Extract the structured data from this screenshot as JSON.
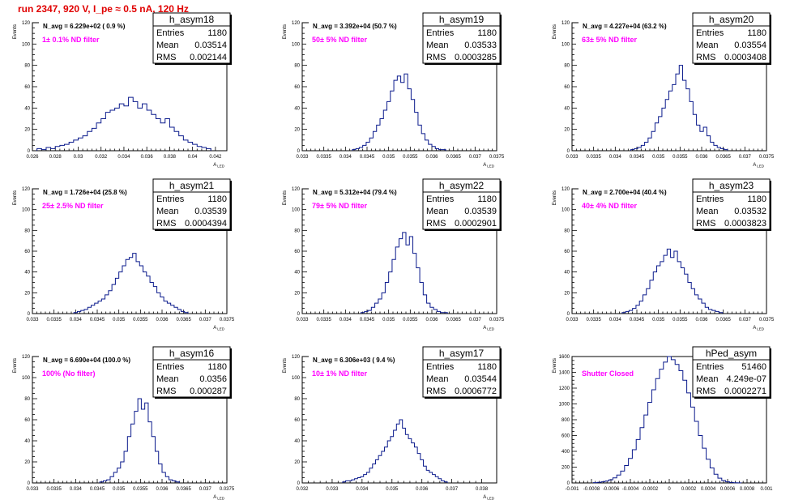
{
  "title": "run 2347,   920 V, I_pe ≈ 0.5 nA, 120 Hz",
  "chart_data": [
    {
      "type": "bar",
      "name": "h_asym18",
      "navg": "N_avg = 6.229e+02 ( 0.9 %)",
      "filter": "1± 0.1% ND filter",
      "entries": "1180",
      "mean": "0.03514",
      "rms": "0.002144",
      "xlabel": "A_LED",
      "ylabel": "Events",
      "xlim": [
        0.026,
        0.043
      ],
      "ylim": [
        0,
        120
      ],
      "xticks": [
        "0.026",
        "0.028",
        "0.03",
        "0.032",
        "0.034",
        "0.036",
        "0.038",
        "0.04",
        "0.042"
      ],
      "yticks": [
        "0",
        "20",
        "40",
        "60",
        "80",
        "100",
        "120"
      ],
      "x": [
        0.0266,
        0.027,
        0.0274,
        0.0278,
        0.0282,
        0.0286,
        0.029,
        0.0294,
        0.0298,
        0.0302,
        0.0306,
        0.031,
        0.0314,
        0.0318,
        0.0322,
        0.0326,
        0.033,
        0.0334,
        0.0338,
        0.0342,
        0.0346,
        0.035,
        0.0354,
        0.0358,
        0.0362,
        0.0366,
        0.037,
        0.0374,
        0.0378,
        0.0382,
        0.0386,
        0.039,
        0.0394,
        0.0398,
        0.0402,
        0.0406,
        0.041,
        0.0414
      ],
      "values": [
        2,
        1,
        3,
        2,
        4,
        5,
        6,
        8,
        10,
        12,
        14,
        18,
        21,
        26,
        30,
        36,
        38,
        40,
        44,
        42,
        50,
        46,
        40,
        44,
        38,
        34,
        30,
        26,
        30,
        22,
        18,
        14,
        10,
        8,
        6,
        4,
        3,
        2
      ]
    },
    {
      "type": "bar",
      "name": "h_asym19",
      "navg": "N_avg = 3.392e+04 (50.7 %)",
      "filter": "50± 5% ND filter",
      "entries": "1180",
      "mean": "0.03533",
      "rms": "0.0003285",
      "xlabel": "A_LED",
      "ylabel": "Events",
      "xlim": [
        0.033,
        0.0375
      ],
      "ylim": [
        0,
        120
      ],
      "xticks": [
        "0.033",
        "0.0335",
        "0.034",
        "0.0345",
        "0.035",
        "0.0355",
        "0.036",
        "0.0365",
        "0.037",
        "0.0375"
      ],
      "yticks": [
        "0",
        "20",
        "40",
        "60",
        "80",
        "100",
        "120"
      ],
      "x": [
        0.0342,
        0.03428,
        0.03436,
        0.03444,
        0.03452,
        0.0346,
        0.03468,
        0.03476,
        0.03484,
        0.03492,
        0.035,
        0.03508,
        0.03516,
        0.03524,
        0.03532,
        0.0354,
        0.03548,
        0.03556,
        0.03564,
        0.03572,
        0.0358,
        0.03588,
        0.03596,
        0.03604,
        0.03612,
        0.0362,
        0.03628
      ],
      "values": [
        1,
        2,
        3,
        5,
        8,
        12,
        18,
        24,
        30,
        38,
        46,
        56,
        66,
        70,
        64,
        72,
        58,
        48,
        36,
        24,
        16,
        10,
        6,
        4,
        2,
        1,
        1
      ]
    },
    {
      "type": "bar",
      "name": "h_asym20",
      "navg": "N_avg = 4.227e+04 (63.2 %)",
      "filter": "63± 5% ND filter",
      "entries": "1180",
      "mean": "0.03554",
      "rms": "0.0003408",
      "xlabel": "A_LED",
      "ylabel": "Events",
      "xlim": [
        0.033,
        0.0375
      ],
      "ylim": [
        0,
        120
      ],
      "xticks": [
        "0.033",
        "0.0335",
        "0.034",
        "0.0345",
        "0.035",
        "0.0355",
        "0.036",
        "0.0365",
        "0.037",
        "0.0375"
      ],
      "yticks": [
        "0",
        "20",
        "40",
        "60",
        "80",
        "100",
        "120"
      ],
      "x": [
        0.0344,
        0.03448,
        0.03456,
        0.03464,
        0.03472,
        0.0348,
        0.03488,
        0.03496,
        0.03504,
        0.03512,
        0.0352,
        0.03528,
        0.03536,
        0.03544,
        0.03552,
        0.0356,
        0.03568,
        0.03576,
        0.03584,
        0.03592,
        0.036,
        0.03608,
        0.03616,
        0.03624,
        0.03632,
        0.0364,
        0.03648,
        0.03656
      ],
      "values": [
        1,
        2,
        3,
        5,
        8,
        12,
        18,
        26,
        32,
        40,
        48,
        56,
        62,
        72,
        80,
        66,
        58,
        46,
        34,
        24,
        18,
        22,
        14,
        8,
        5,
        3,
        2,
        1
      ]
    },
    {
      "type": "bar",
      "name": "h_asym21",
      "navg": "N_avg = 1.726e+04 (25.8 %)",
      "filter": "25± 2.5% ND filter",
      "entries": "1180",
      "mean": "0.03539",
      "rms": "0.0004394",
      "xlabel": "A_LED",
      "ylabel": "Events",
      "xlim": [
        0.033,
        0.0375
      ],
      "ylim": [
        0,
        120
      ],
      "xticks": [
        "0.033",
        "0.0335",
        "0.034",
        "0.0345",
        "0.035",
        "0.0355",
        "0.036",
        "0.0365",
        "0.037",
        "0.0375"
      ],
      "yticks": [
        "0",
        "20",
        "40",
        "60",
        "80",
        "100",
        "120"
      ],
      "x": [
        0.034,
        0.03408,
        0.03416,
        0.03424,
        0.03432,
        0.0344,
        0.03448,
        0.03456,
        0.03464,
        0.03472,
        0.0348,
        0.03488,
        0.03496,
        0.03504,
        0.03512,
        0.0352,
        0.03528,
        0.03536,
        0.03544,
        0.03552,
        0.0356,
        0.03568,
        0.03576,
        0.03584,
        0.03592,
        0.036,
        0.03608,
        0.03616,
        0.03624,
        0.03632,
        0.0364,
        0.03648,
        0.03656
      ],
      "values": [
        1,
        2,
        3,
        4,
        6,
        8,
        10,
        12,
        14,
        18,
        22,
        28,
        34,
        40,
        46,
        52,
        54,
        58,
        50,
        46,
        40,
        36,
        30,
        26,
        20,
        16,
        12,
        10,
        8,
        6,
        4,
        2,
        1
      ]
    },
    {
      "type": "bar",
      "name": "h_asym22",
      "navg": "N_avg = 5.312e+04 (79.4 %)",
      "filter": "79± 5% ND filter",
      "entries": "1180",
      "mean": "0.03539",
      "rms": "0.0002901",
      "xlabel": "A_LED",
      "ylabel": "Events",
      "xlim": [
        0.033,
        0.0375
      ],
      "ylim": [
        0,
        120
      ],
      "xticks": [
        "0.033",
        "0.0335",
        "0.034",
        "0.0345",
        "0.035",
        "0.0355",
        "0.036",
        "0.0365",
        "0.037",
        "0.0375"
      ],
      "yticks": [
        "0",
        "20",
        "40",
        "60",
        "80",
        "100",
        "120"
      ],
      "x": [
        0.0344,
        0.03448,
        0.03456,
        0.03464,
        0.03472,
        0.0348,
        0.03488,
        0.03496,
        0.03504,
        0.03512,
        0.0352,
        0.03528,
        0.03536,
        0.03544,
        0.03552,
        0.0356,
        0.03568,
        0.03576,
        0.03584,
        0.03592,
        0.036,
        0.03608,
        0.03616,
        0.03624,
        0.03632
      ],
      "values": [
        1,
        2,
        3,
        6,
        10,
        14,
        20,
        30,
        40,
        52,
        64,
        72,
        78,
        66,
        74,
        58,
        44,
        30,
        18,
        10,
        6,
        4,
        2,
        1,
        1
      ]
    },
    {
      "type": "bar",
      "name": "h_asym23",
      "navg": "N_avg = 2.700e+04 (40.4 %)",
      "filter": "40± 4% ND filter",
      "entries": "1180",
      "mean": "0.03532",
      "rms": "0.0003823",
      "xlabel": "A_LED",
      "ylabel": "Events",
      "xlim": [
        0.033,
        0.0375
      ],
      "ylim": [
        0,
        120
      ],
      "xticks": [
        "0.033",
        "0.0335",
        "0.034",
        "0.0345",
        "0.035",
        "0.0355",
        "0.036",
        "0.0365",
        "0.037",
        "0.0375"
      ],
      "yticks": [
        "0",
        "20",
        "40",
        "60",
        "80",
        "100",
        "120"
      ],
      "x": [
        0.0342,
        0.03428,
        0.03436,
        0.03444,
        0.03452,
        0.0346,
        0.03468,
        0.03476,
        0.03484,
        0.03492,
        0.035,
        0.03508,
        0.03516,
        0.03524,
        0.03532,
        0.0354,
        0.03548,
        0.03556,
        0.03564,
        0.03572,
        0.0358,
        0.03588,
        0.03596,
        0.03604,
        0.03612,
        0.0362,
        0.03628,
        0.03636,
        0.03644
      ],
      "values": [
        1,
        2,
        3,
        5,
        8,
        12,
        18,
        24,
        32,
        40,
        46,
        50,
        56,
        62,
        54,
        60,
        50,
        44,
        38,
        30,
        24,
        18,
        14,
        10,
        6,
        4,
        3,
        2,
        1
      ]
    },
    {
      "type": "bar",
      "name": "h_asym16",
      "navg": "N_avg = 6.690e+04 (100.0 %)",
      "filter": "100% (No filter)",
      "entries": "1180",
      "mean": "0.0356",
      "rms": "0.000287",
      "xlabel": "A_LED",
      "ylabel": "Events",
      "xlim": [
        0.033,
        0.0375
      ],
      "ylim": [
        0,
        120
      ],
      "xticks": [
        "0.033",
        "0.0335",
        "0.034",
        "0.0345",
        "0.035",
        "0.0355",
        "0.036",
        "0.0365",
        "0.037",
        "0.0375"
      ],
      "yticks": [
        "0",
        "20",
        "40",
        "60",
        "80",
        "100",
        "120"
      ],
      "x": [
        0.0346,
        0.03468,
        0.03476,
        0.03484,
        0.03492,
        0.035,
        0.03508,
        0.03516,
        0.03524,
        0.03532,
        0.0354,
        0.03548,
        0.03556,
        0.03564,
        0.03572,
        0.0358,
        0.03588,
        0.03596,
        0.03604,
        0.03612,
        0.0362,
        0.03628,
        0.03636
      ],
      "values": [
        1,
        2,
        3,
        6,
        10,
        14,
        20,
        30,
        44,
        56,
        68,
        80,
        70,
        76,
        58,
        44,
        30,
        18,
        10,
        6,
        3,
        2,
        1
      ]
    },
    {
      "type": "bar",
      "name": "h_asym17",
      "navg": "N_avg = 6.306e+03 ( 9.4 %)",
      "filter": "10± 1% ND filter",
      "entries": "1180",
      "mean": "0.03544",
      "rms": "0.0006772",
      "xlabel": "A_LED",
      "ylabel": "Events",
      "xlim": [
        0.032,
        0.0385
      ],
      "ylim": [
        0,
        120
      ],
      "xticks": [
        "0.032",
        "0.033",
        "0.034",
        "0.035",
        "0.036",
        "0.037",
        "0.038"
      ],
      "yticks": [
        "0",
        "20",
        "40",
        "60",
        "80",
        "100",
        "120"
      ],
      "x": [
        0.0334,
        0.0335,
        0.0336,
        0.0337,
        0.0338,
        0.0339,
        0.034,
        0.0341,
        0.0342,
        0.0343,
        0.0344,
        0.0345,
        0.0346,
        0.0347,
        0.0348,
        0.0349,
        0.035,
        0.0351,
        0.0352,
        0.0353,
        0.0354,
        0.0355,
        0.0356,
        0.0357,
        0.0358,
        0.0359,
        0.036,
        0.0361,
        0.0362,
        0.0363,
        0.0364,
        0.0365,
        0.0366,
        0.0367,
        0.0368
      ],
      "values": [
        1,
        2,
        2,
        3,
        4,
        5,
        6,
        8,
        10,
        14,
        18,
        22,
        26,
        30,
        34,
        40,
        44,
        50,
        56,
        60,
        52,
        46,
        42,
        38,
        34,
        28,
        22,
        16,
        12,
        10,
        8,
        6,
        4,
        2,
        1
      ]
    },
    {
      "type": "bar",
      "name": "hPed_asym",
      "navg": "",
      "filter": "Shutter Closed",
      "entries": "51460",
      "mean": "4.249e-07",
      "rms": "0.0002271",
      "xlabel": "",
      "ylabel": "Events",
      "xlim": [
        -0.001,
        0.001
      ],
      "ylim": [
        0,
        1600
      ],
      "xticks": [
        "-0.001",
        "-0.0008",
        "-0.0006",
        "-0.0004",
        "-0.0002",
        "0",
        "0.0002",
        "0.0004",
        "0.0006",
        "0.0008",
        "0.001"
      ],
      "yticks": [
        "0",
        "200",
        "400",
        "600",
        "800",
        "1000",
        "1200",
        "1400",
        "1600"
      ],
      "x": [
        -0.00076,
        -0.00072,
        -0.00068,
        -0.00064,
        -0.0006,
        -0.00056,
        -0.00052,
        -0.00048,
        -0.00044,
        -0.0004,
        -0.00036,
        -0.00032,
        -0.00028,
        -0.00024,
        -0.0002,
        -0.00016,
        -0.00012,
        -8e-05,
        -4e-05,
        0.0,
        4e-05,
        8e-05,
        0.00012,
        0.00016,
        0.0002,
        0.00024,
        0.00028,
        0.00032,
        0.00036,
        0.0004,
        0.00044,
        0.00048,
        0.00052,
        0.00056,
        0.0006,
        0.00064,
        0.00068,
        0.00072
      ],
      "values": [
        4,
        8,
        14,
        24,
        40,
        64,
        100,
        150,
        220,
        310,
        420,
        550,
        700,
        860,
        1020,
        1180,
        1320,
        1440,
        1530,
        1600,
        1560,
        1500,
        1420,
        1300,
        1140,
        960,
        780,
        600,
        440,
        300,
        190,
        110,
        60,
        30,
        14,
        6,
        3,
        1
      ]
    }
  ]
}
